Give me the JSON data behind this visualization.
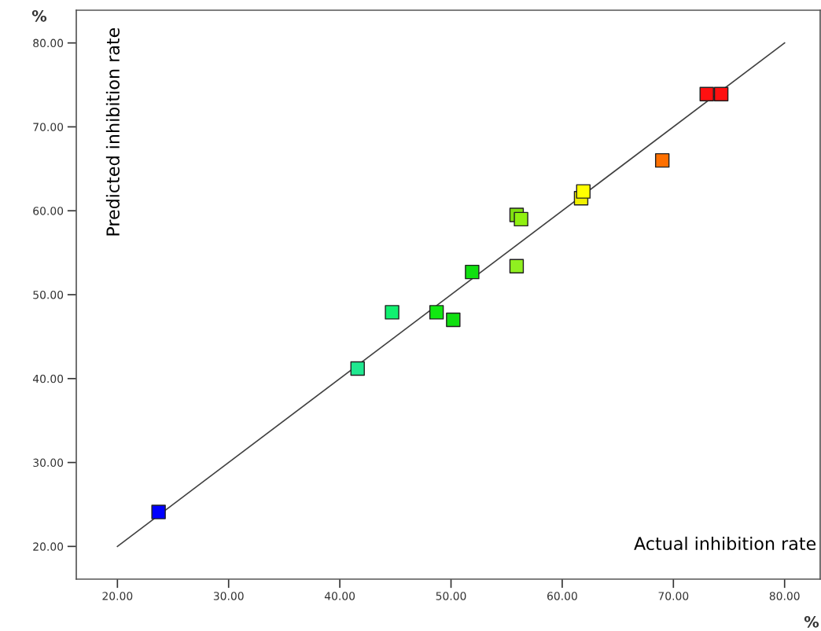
{
  "chart_data": {
    "type": "scatter",
    "xlabel": "Actual inhibition rate",
    "ylabel": "Predicted inhibition rate",
    "annotations": [
      "%",
      "%"
    ],
    "xlim": [
      16.3,
      83.2
    ],
    "ylim": [
      16.1,
      83.9
    ],
    "xticks": [
      {
        "value": 20,
        "label": "20.00"
      },
      {
        "value": 30,
        "label": "30.00"
      },
      {
        "value": 40,
        "label": "40.00"
      },
      {
        "value": 50,
        "label": "50.00"
      },
      {
        "value": 60,
        "label": "60.00"
      },
      {
        "value": 70,
        "label": "70.00"
      },
      {
        "value": 80,
        "label": "80.00"
      }
    ],
    "yticks": [
      {
        "value": 20,
        "label": "20.00"
      },
      {
        "value": 30,
        "label": "30.00"
      },
      {
        "value": 40,
        "label": "40.00"
      },
      {
        "value": 50,
        "label": "50.00"
      },
      {
        "value": 60,
        "label": "60.00"
      },
      {
        "value": 70,
        "label": "70.00"
      },
      {
        "value": 80,
        "label": "80.00"
      }
    ],
    "grid": false,
    "legend": false,
    "marker": "square",
    "series": [
      {
        "type": "line",
        "color": "#404040",
        "marker": "none",
        "line_style": "solid",
        "x": [
          20,
          80
        ],
        "values": [
          20,
          80
        ]
      },
      {
        "x": [
          23.7,
          41.6,
          44.7,
          48.7,
          50.2,
          51.9,
          55.9,
          55.9,
          56.3,
          61.7,
          61.9,
          69.0,
          73.0,
          74.3
        ],
        "values": [
          24.1,
          41.2,
          47.9,
          47.9,
          47.0,
          52.7,
          53.4,
          59.5,
          59.0,
          61.5,
          62.3,
          66.0,
          73.9,
          73.9
        ],
        "colors": [
          "#0000ff",
          "#20e890",
          "#10f070",
          "#10e810",
          "#10e010",
          "#10e010",
          "#90f020",
          "#80e010",
          "#90f010",
          "#f0f000",
          "#ffff00",
          "#ff7000",
          "#ff1010",
          "#ff1010"
        ]
      }
    ]
  }
}
